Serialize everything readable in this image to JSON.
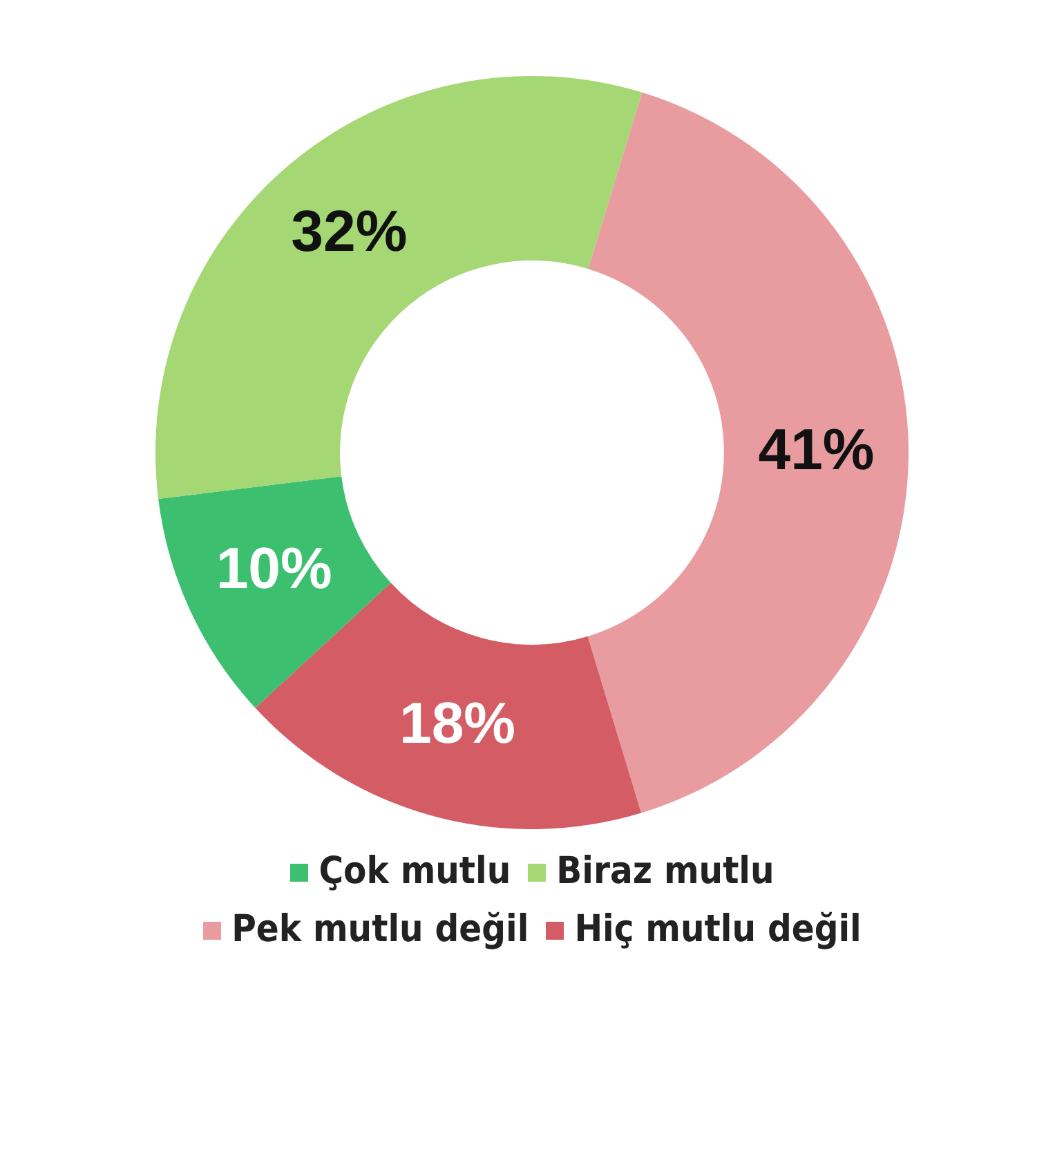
{
  "chart_data": {
    "type": "donut",
    "categories": [
      "Çok mutlu",
      "Biraz mutlu",
      "Pek mutlu değil",
      "Hiç mutlu değil"
    ],
    "values": [
      10,
      32,
      41,
      18
    ],
    "colors": [
      "#3cbf6e",
      "#a5d874",
      "#e89ca0",
      "#d45c64"
    ],
    "value_labels": [
      "10%",
      "32%",
      "41%",
      "18%"
    ],
    "legend": "bottom"
  }
}
